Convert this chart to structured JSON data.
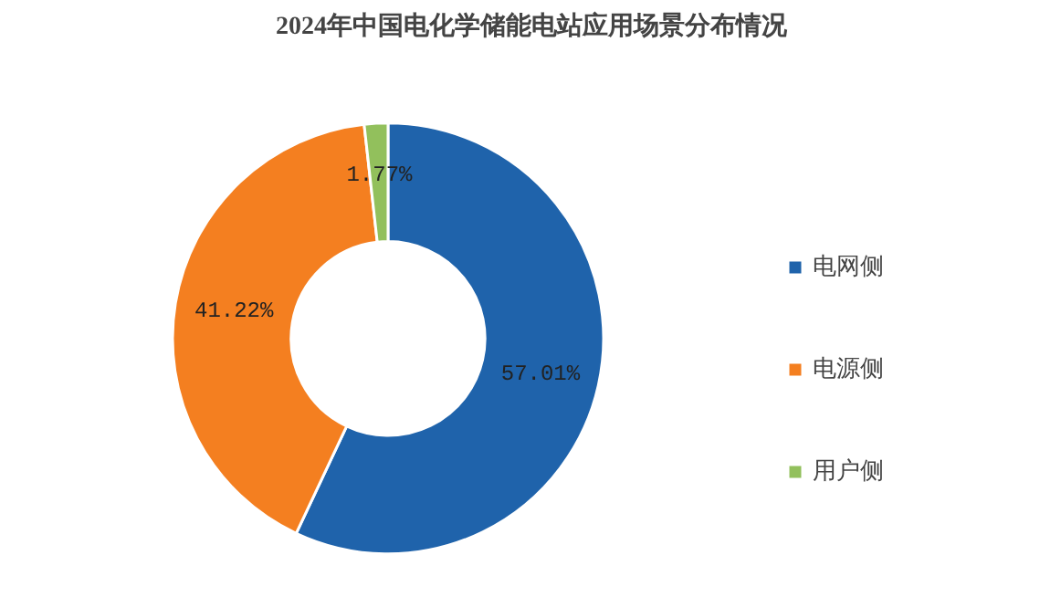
{
  "chart_data": {
    "type": "donut",
    "title": "2024年中国电化学储能电站应用场景分布情况",
    "categories": [
      "电网侧",
      "电源侧",
      "用户侧"
    ],
    "values": [
      57.01,
      41.22,
      1.77
    ],
    "colors": [
      "#1f63ab",
      "#f47f20",
      "#92c05c"
    ],
    "value_labels": [
      "57.01%",
      "41.22%",
      "1.77%"
    ],
    "legend": "right"
  }
}
